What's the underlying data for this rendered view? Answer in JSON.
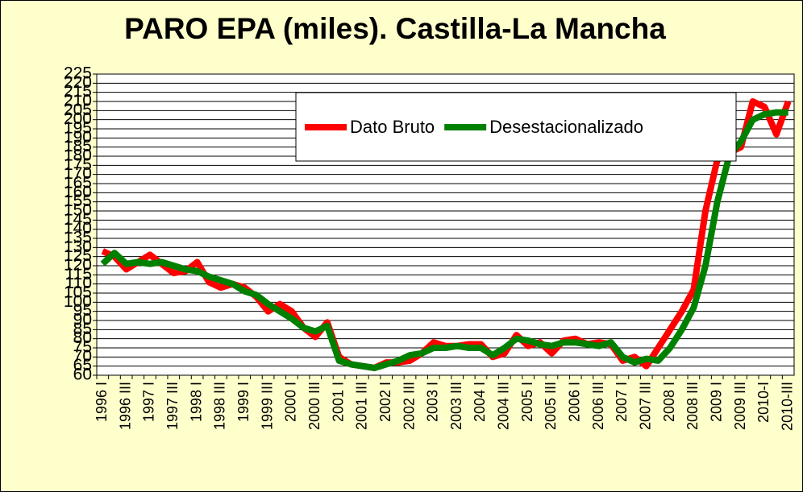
{
  "chart_data": {
    "type": "line",
    "title": "PARO EPA (miles). Castilla-La Mancha",
    "categories": [
      "1996 I",
      null,
      "1996 III",
      null,
      "1997 I",
      null,
      "1997 III",
      null,
      "1998 I",
      null,
      "1998 III",
      null,
      "1999 I",
      null,
      "1999 III",
      null,
      "2000 I",
      null,
      "2000 III",
      null,
      "2001 I",
      null,
      "2001 III",
      null,
      "2002 I",
      null,
      "2002 III",
      null,
      "2003 I",
      null,
      "2003 III",
      null,
      "2004 I",
      null,
      "2004 III",
      null,
      "2005 I",
      null,
      "2005 III",
      null,
      "2006 I",
      null,
      "2006 III",
      null,
      "2007 I",
      null,
      "2007 III",
      null,
      "2008 I",
      null,
      "2008 III",
      null,
      "2009 I",
      null,
      "2009 III",
      null,
      "2010-I",
      null,
      "2010-III"
    ],
    "series": [
      {
        "name": "Dato Bruto",
        "color": "#ff0000",
        "values": [
          128,
          125,
          118,
          122,
          126,
          121,
          116,
          117,
          122,
          111,
          108,
          110,
          108,
          103,
          95,
          99,
          95,
          86,
          81,
          89,
          70,
          66,
          65,
          64,
          67,
          67,
          68,
          72,
          78,
          76,
          76,
          77,
          77,
          70,
          72,
          82,
          76,
          78,
          72,
          79,
          80,
          77,
          78,
          77,
          68,
          70,
          65,
          75,
          85,
          95,
          107,
          150,
          178,
          182,
          185,
          210,
          207,
          192,
          210
        ]
      },
      {
        "name": "Desestacionalizado",
        "color": "#008000",
        "values": [
          121,
          127,
          121,
          122,
          121,
          122,
          120,
          118,
          117,
          114,
          112,
          110,
          106,
          104,
          99,
          95,
          91,
          86,
          84,
          87,
          68,
          66,
          65,
          64,
          66,
          68,
          71,
          72,
          75,
          75,
          76,
          75,
          75,
          71,
          75,
          80,
          79,
          77,
          76,
          78,
          78,
          77,
          76,
          78,
          70,
          67,
          69,
          68,
          75,
          85,
          97,
          120,
          155,
          180,
          188,
          200,
          203,
          204,
          204
        ]
      }
    ],
    "ylim": [
      60,
      225
    ],
    "yticks": [
      60,
      65,
      70,
      75,
      80,
      85,
      90,
      95,
      100,
      105,
      110,
      115,
      120,
      125,
      130,
      135,
      140,
      145,
      150,
      155,
      160,
      165,
      170,
      175,
      180,
      185,
      190,
      195,
      200,
      205,
      210,
      215,
      220,
      225
    ],
    "grid": true
  }
}
